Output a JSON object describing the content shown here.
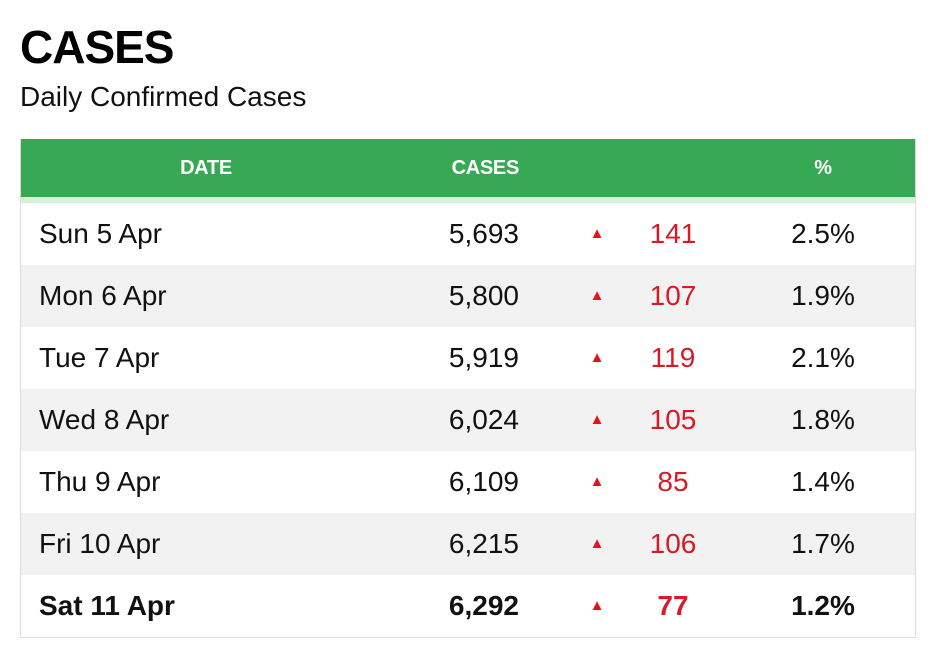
{
  "header": {
    "title": "CASES",
    "subtitle": "Daily Confirmed Cases"
  },
  "table": {
    "columns": {
      "date": "DATE",
      "cases": "CASES",
      "change": "",
      "percent": "%"
    },
    "rows": [
      {
        "date": "Sun 5 Apr",
        "cases": "5,693",
        "trend_icon": "▲",
        "change": "141",
        "percent": "2.5%"
      },
      {
        "date": "Mon 6 Apr",
        "cases": "5,800",
        "trend_icon": "▲",
        "change": "107",
        "percent": "1.9%"
      },
      {
        "date": "Tue 7 Apr",
        "cases": "5,919",
        "trend_icon": "▲",
        "change": "119",
        "percent": "2.1%"
      },
      {
        "date": "Wed 8 Apr",
        "cases": "6,024",
        "trend_icon": "▲",
        "change": "105",
        "percent": "1.8%"
      },
      {
        "date": "Thu 9 Apr",
        "cases": "6,109",
        "trend_icon": "▲",
        "change": "85",
        "percent": "1.4%"
      },
      {
        "date": "Fri 10 Apr",
        "cases": "6,215",
        "trend_icon": "▲",
        "change": "106",
        "percent": "1.7%"
      },
      {
        "date": "Sat 11 Apr",
        "cases": "6,292",
        "trend_icon": "▲",
        "change": "77",
        "percent": "1.2%"
      }
    ]
  },
  "colors": {
    "header_green": "#37a853",
    "increase_red": "#d81a26",
    "row_alt": "#f2f2f2"
  }
}
